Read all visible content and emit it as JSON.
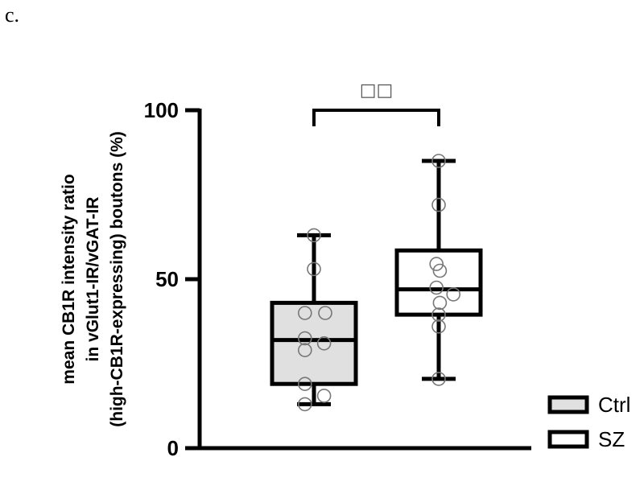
{
  "panel_label": "c.",
  "chart_data": {
    "type": "box",
    "ylabel_lines": [
      "mean CB1R intensity ratio",
      "in vGlut1-IR/vGAT-IR",
      "(high-CB1R-expressing) boutons (%)"
    ],
    "ylim": [
      0,
      100
    ],
    "yticks": [
      0,
      50,
      100
    ],
    "ytick_labels": [
      "0",
      "50",
      "100"
    ],
    "grid": false,
    "legend_position": "bottom-right",
    "significance": {
      "label": "□□",
      "between": [
        "Ctrl",
        "SZ"
      ]
    },
    "series": [
      {
        "name": "Ctrl",
        "fill": "#e0e0e0",
        "whisker_low": 13,
        "q1": 19,
        "median": 32,
        "q3": 43,
        "whisker_high": 63,
        "points": [
          {
            "offset": 0,
            "y": 63
          },
          {
            "offset": 0,
            "y": 53
          },
          {
            "offset": -0.4,
            "y": 40
          },
          {
            "offset": 0.5,
            "y": 40
          },
          {
            "offset": -0.4,
            "y": 32.5
          },
          {
            "offset": 0.45,
            "y": 31
          },
          {
            "offset": -0.4,
            "y": 29
          },
          {
            "offset": -0.4,
            "y": 19
          },
          {
            "offset": 0.45,
            "y": 15.5
          },
          {
            "offset": -0.4,
            "y": 13
          }
        ]
      },
      {
        "name": "SZ",
        "fill": "#ffffff",
        "whisker_low": 20.5,
        "q1": 39.5,
        "median": 47,
        "q3": 58.5,
        "whisker_high": 85,
        "points": [
          {
            "offset": 0,
            "y": 85
          },
          {
            "offset": 0,
            "y": 72
          },
          {
            "offset": -0.1,
            "y": 54.5
          },
          {
            "offset": 0.05,
            "y": 52.5
          },
          {
            "offset": -0.1,
            "y": 47.5
          },
          {
            "offset": 0.65,
            "y": 45.5
          },
          {
            "offset": 0.05,
            "y": 43
          },
          {
            "offset": 0,
            "y": 39.5
          },
          {
            "offset": 0,
            "y": 36
          },
          {
            "offset": 0,
            "y": 20.5
          }
        ]
      }
    ]
  }
}
